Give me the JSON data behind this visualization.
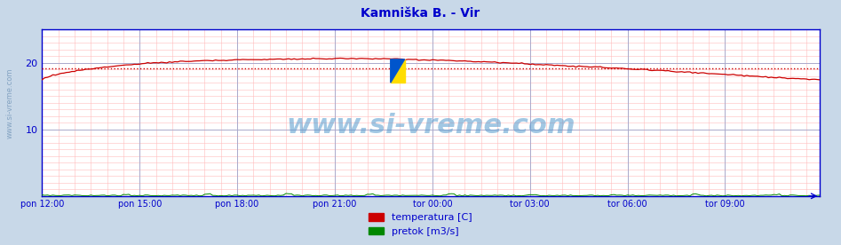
{
  "title": "Kamniška B. - Vir",
  "title_color": "#0000cc",
  "title_fontsize": 10,
  "fig_bg_color": "#c8d8e8",
  "plot_bg_color": "#ffffff",
  "xlim": [
    0,
    287
  ],
  "ylim": [
    0,
    25
  ],
  "yticks": [
    10,
    20
  ],
  "xtick_labels": [
    "pon 12:00",
    "pon 15:00",
    "pon 18:00",
    "pon 21:00",
    "tor 00:00",
    "tor 03:00",
    "tor 06:00",
    "tor 09:00"
  ],
  "xtick_positions": [
    0,
    36,
    72,
    108,
    144,
    180,
    216,
    252
  ],
  "major_grid_color": "#aaaacc",
  "minor_grid_color_x": "#ffaaaa",
  "minor_grid_color_y": "#ffaaaa",
  "watermark": "www.si-vreme.com",
  "watermark_color": "#5599cc",
  "watermark_alpha": 0.55,
  "watermark_fontsize": 22,
  "avg_line_value": 19.1,
  "avg_line_color": "#cc0000",
  "temp_color": "#cc0000",
  "flow_color": "#008800",
  "axis_color": "#0000cc",
  "tick_label_color": "#0000cc",
  "legend_temp_label": "temperatura [C]",
  "legend_flow_label": "pretok [m3/s]",
  "legend_fontsize": 8,
  "sidewatermark": "www.si-vreme.com",
  "sidewatermark_color": "#7799bb",
  "sidewatermark_fontsize": 6
}
